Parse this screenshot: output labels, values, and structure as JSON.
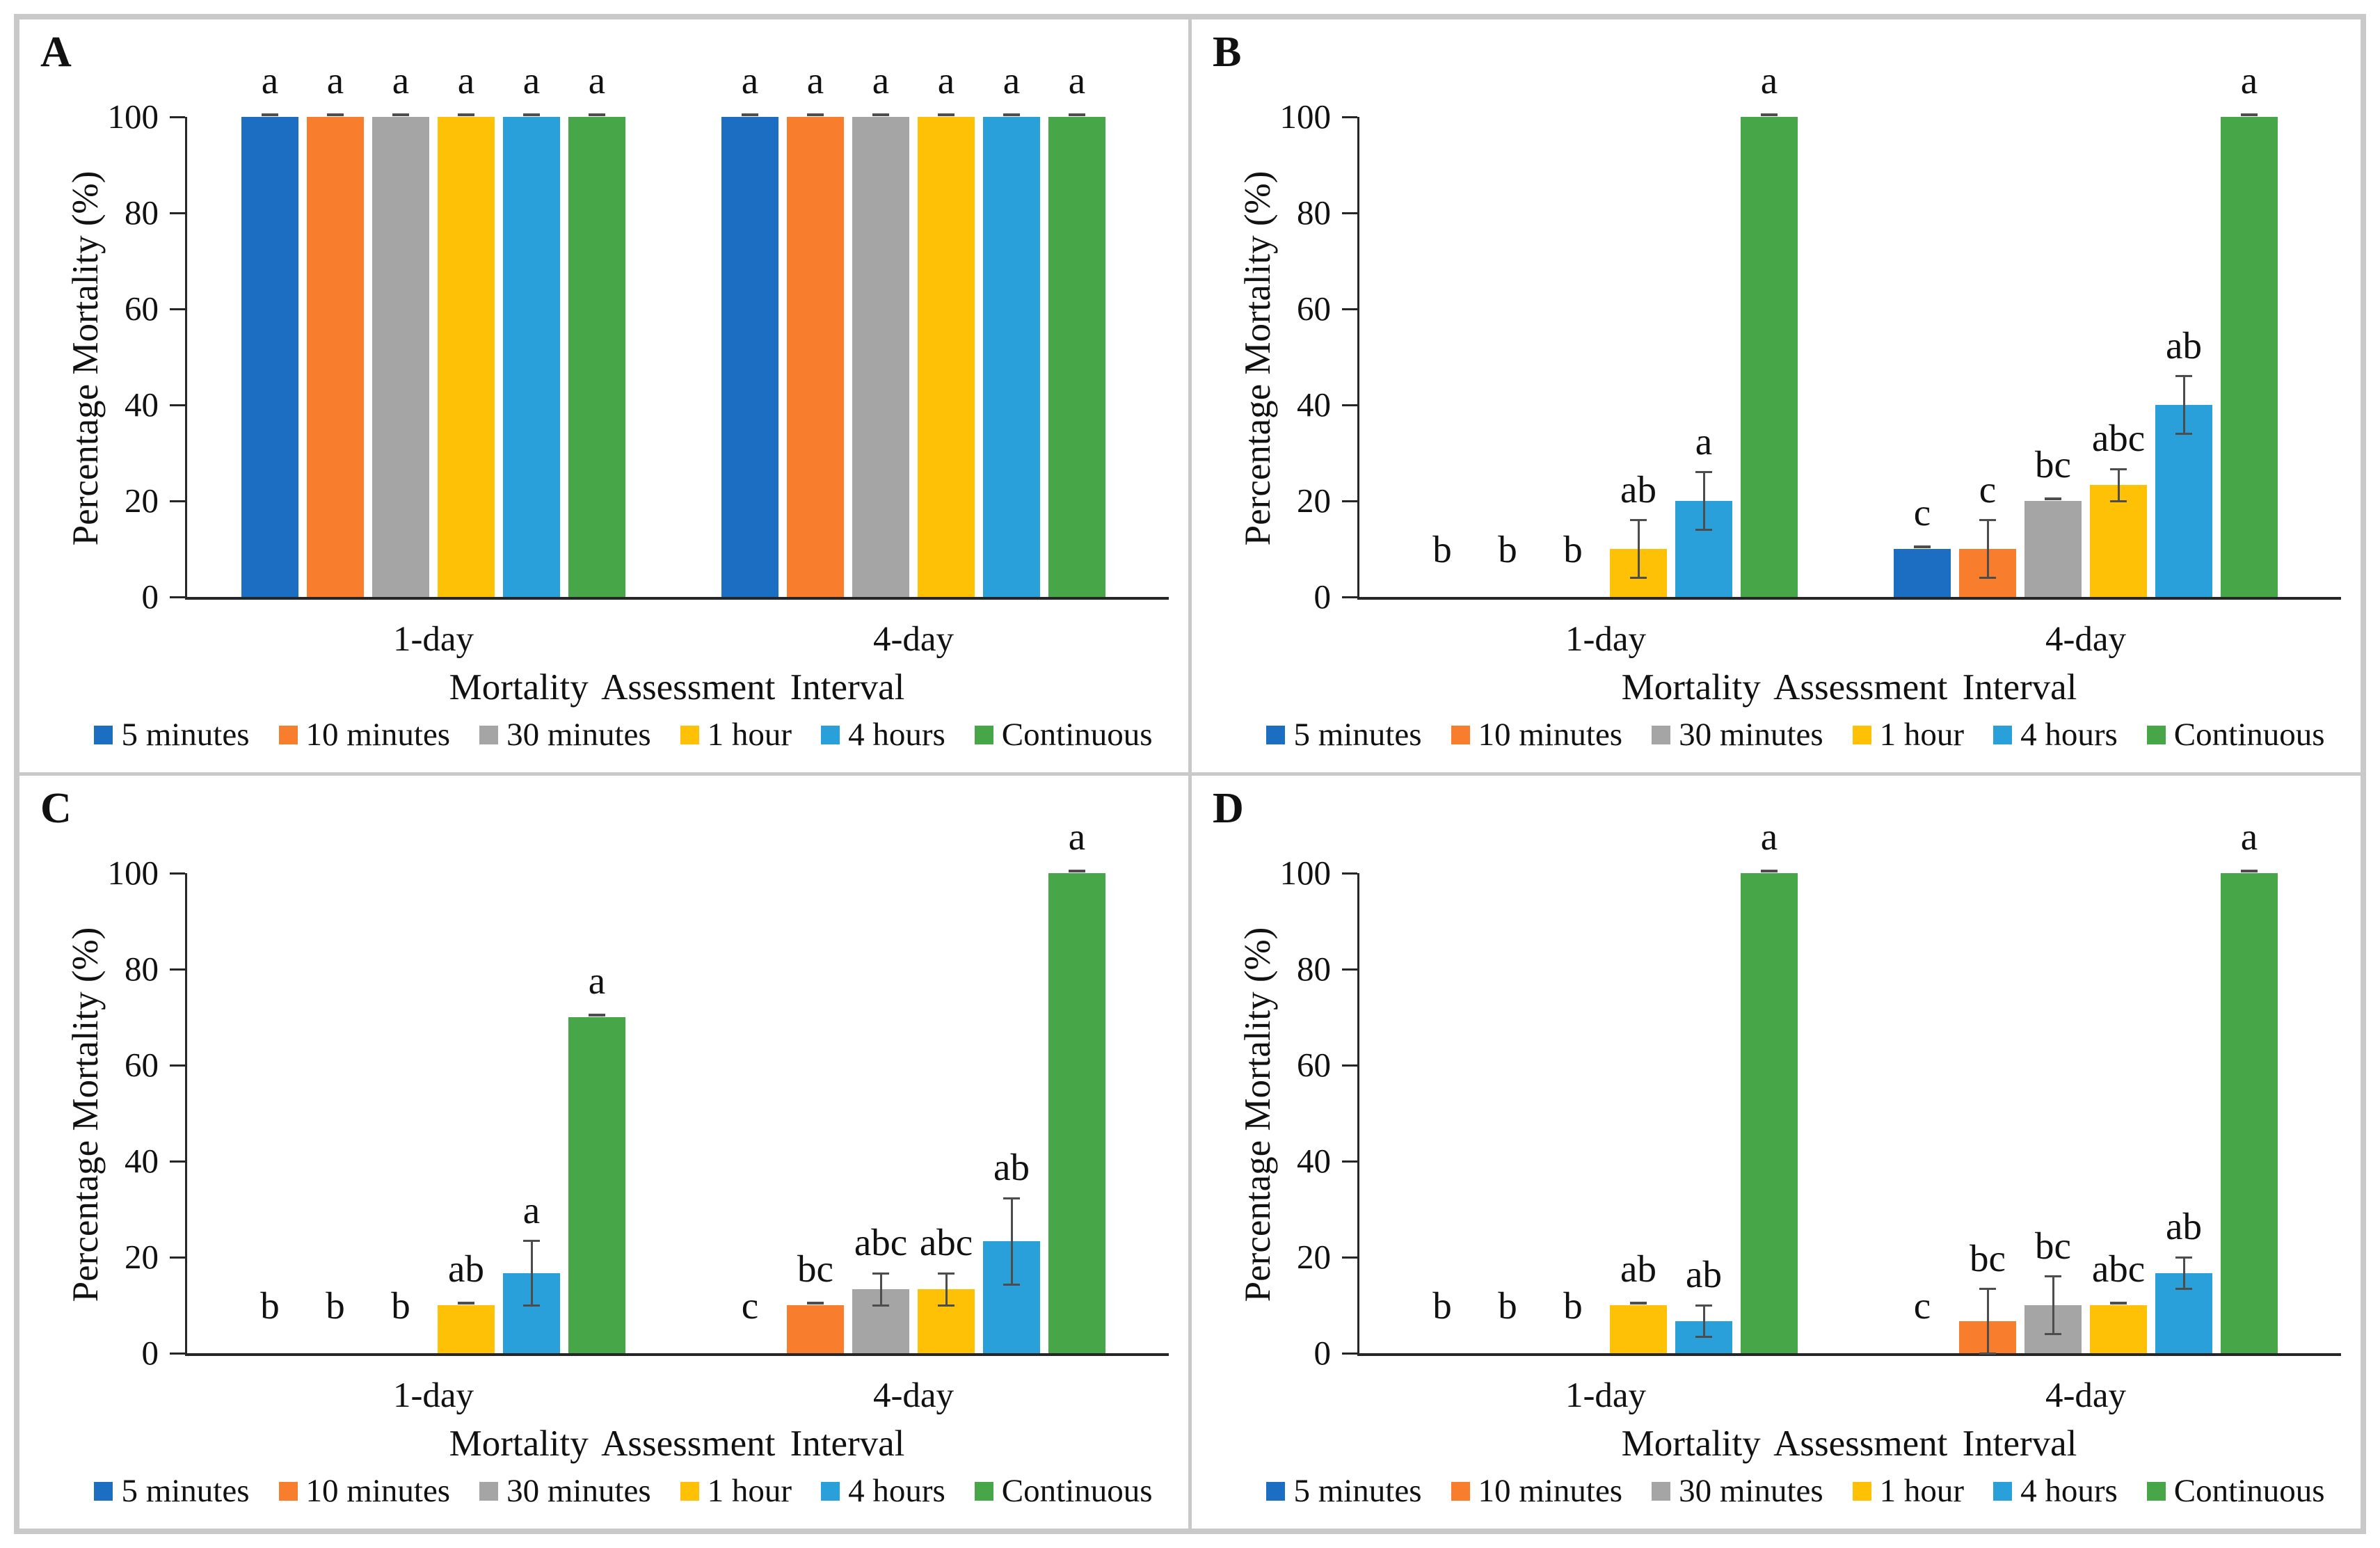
{
  "figure": {
    "panel_count": 4,
    "frame_color": "#c9c9c9",
    "axis_color": "#262626",
    "error_bar_color": "#4d4d4d"
  },
  "chart_data": [
    {
      "panel_label": "A",
      "type": "bar",
      "ylabel": "Percentage Mortality (%)",
      "xlabel": "Mortality Assessment Interval",
      "ylim": [
        0,
        100
      ],
      "yticks": [
        0,
        20,
        40,
        60,
        80,
        100
      ],
      "categories": [
        "1-day",
        "4-day"
      ],
      "grid": false,
      "legend_position": "bottom",
      "series": [
        {
          "name": "5  minutes",
          "color": "#1B6EC2",
          "values": [
            100,
            100
          ],
          "errors": [
            0.5,
            0.5
          ],
          "sig_letters": [
            "a",
            "a"
          ]
        },
        {
          "name": "10 minutes",
          "color": "#F87E2D",
          "values": [
            100,
            100
          ],
          "errors": [
            0.5,
            0.5
          ],
          "sig_letters": [
            "a",
            "a"
          ]
        },
        {
          "name": "30 minutes",
          "color": "#A5A5A5",
          "values": [
            100,
            100
          ],
          "errors": [
            0.5,
            0.5
          ],
          "sig_letters": [
            "a",
            "a"
          ]
        },
        {
          "name": "1 hour",
          "color": "#FEC106",
          "values": [
            100,
            100
          ],
          "errors": [
            0.5,
            0.5
          ],
          "sig_letters": [
            "a",
            "a"
          ]
        },
        {
          "name": "4 hours",
          "color": "#29A0DA",
          "values": [
            100,
            100
          ],
          "errors": [
            0.5,
            0.5
          ],
          "sig_letters": [
            "a",
            "a"
          ]
        },
        {
          "name": "Continuous",
          "color": "#47A647",
          "values": [
            100,
            100
          ],
          "errors": [
            0.5,
            0.5
          ],
          "sig_letters": [
            "a",
            "a"
          ]
        }
      ]
    },
    {
      "panel_label": "B",
      "type": "bar",
      "ylabel": "Percentage Mortality (%)",
      "xlabel": "Mortality Assessment Interval",
      "ylim": [
        0,
        100
      ],
      "yticks": [
        0,
        20,
        40,
        60,
        80,
        100
      ],
      "categories": [
        "1-day",
        "4-day"
      ],
      "grid": false,
      "legend_position": "bottom",
      "series": [
        {
          "name": "5  minutes",
          "color": "#1B6EC2",
          "values": [
            0,
            10
          ],
          "errors": [
            0,
            0.5
          ],
          "sig_letters": [
            "b",
            "c"
          ]
        },
        {
          "name": "10 minutes",
          "color": "#F87E2D",
          "values": [
            0,
            10
          ],
          "errors": [
            0,
            6
          ],
          "sig_letters": [
            "b",
            "c"
          ]
        },
        {
          "name": "30 minutes",
          "color": "#A5A5A5",
          "values": [
            0,
            20
          ],
          "errors": [
            0,
            0.5
          ],
          "sig_letters": [
            "b",
            "bc"
          ]
        },
        {
          "name": "1 hour",
          "color": "#FEC106",
          "values": [
            10,
            23.3
          ],
          "errors": [
            6,
            3.3
          ],
          "sig_letters": [
            "ab",
            "abc"
          ]
        },
        {
          "name": "4 hours",
          "color": "#29A0DA",
          "values": [
            20,
            40
          ],
          "errors": [
            6,
            6
          ],
          "sig_letters": [
            "a",
            "ab"
          ]
        },
        {
          "name": "Continuous",
          "color": "#47A647",
          "values": [
            100,
            100
          ],
          "errors": [
            0.5,
            0.5
          ],
          "sig_letters": [
            "a",
            "a"
          ]
        }
      ]
    },
    {
      "panel_label": "C",
      "type": "bar",
      "ylabel": "Percentage Mortality (%)",
      "xlabel": "Mortality Assessment Interval",
      "ylim": [
        0,
        100
      ],
      "yticks": [
        0,
        20,
        40,
        60,
        80,
        100
      ],
      "categories": [
        "1-day",
        "4-day"
      ],
      "grid": false,
      "legend_position": "bottom",
      "series": [
        {
          "name": "5  minutes",
          "color": "#1B6EC2",
          "values": [
            0,
            0
          ],
          "errors": [
            0,
            0
          ],
          "sig_letters": [
            "b",
            "c"
          ]
        },
        {
          "name": "10 minutes",
          "color": "#F87E2D",
          "values": [
            0,
            10
          ],
          "errors": [
            0,
            0.5
          ],
          "sig_letters": [
            "b",
            "bc"
          ]
        },
        {
          "name": "30 minutes",
          "color": "#A5A5A5",
          "values": [
            0,
            13.3
          ],
          "errors": [
            0,
            3.3
          ],
          "sig_letters": [
            "b",
            "abc"
          ]
        },
        {
          "name": "1 hour",
          "color": "#FEC106",
          "values": [
            10,
            13.3
          ],
          "errors": [
            0.5,
            3.3
          ],
          "sig_letters": [
            "ab",
            "abc"
          ]
        },
        {
          "name": "4 hours",
          "color": "#29A0DA",
          "values": [
            16.7,
            23.3
          ],
          "errors": [
            6.7,
            9
          ],
          "sig_letters": [
            "a",
            "ab"
          ]
        },
        {
          "name": "Continuous",
          "color": "#47A647",
          "values": [
            70,
            100
          ],
          "errors": [
            0.5,
            0.5
          ],
          "sig_letters": [
            "a",
            "a"
          ]
        }
      ]
    },
    {
      "panel_label": "D",
      "type": "bar",
      "ylabel": "Percentage Mortality (%)",
      "xlabel": "Mortality Assessment Interval",
      "ylim": [
        0,
        100
      ],
      "yticks": [
        0,
        20,
        40,
        60,
        80,
        100
      ],
      "categories": [
        "1-day",
        "4-day"
      ],
      "grid": false,
      "legend_position": "bottom",
      "series": [
        {
          "name": "5  minutes",
          "color": "#1B6EC2",
          "values": [
            0,
            0
          ],
          "errors": [
            0,
            0
          ],
          "sig_letters": [
            "b",
            "c"
          ]
        },
        {
          "name": "10 minutes",
          "color": "#F87E2D",
          "values": [
            0,
            6.7
          ],
          "errors": [
            0,
            6.7
          ],
          "sig_letters": [
            "b",
            "bc"
          ]
        },
        {
          "name": "30 minutes",
          "color": "#A5A5A5",
          "values": [
            0,
            10
          ],
          "errors": [
            0,
            6
          ],
          "sig_letters": [
            "b",
            "bc"
          ]
        },
        {
          "name": "1 hour",
          "color": "#FEC106",
          "values": [
            10,
            10
          ],
          "errors": [
            0.5,
            0.5
          ],
          "sig_letters": [
            "ab",
            "abc"
          ]
        },
        {
          "name": "4 hours",
          "color": "#29A0DA",
          "values": [
            6.7,
            16.7
          ],
          "errors": [
            3.3,
            3.3
          ],
          "sig_letters": [
            "ab",
            "ab"
          ]
        },
        {
          "name": "Continuous",
          "color": "#47A647",
          "values": [
            100,
            100
          ],
          "errors": [
            0.5,
            0.5
          ],
          "sig_letters": [
            "a",
            "a"
          ]
        }
      ]
    }
  ]
}
